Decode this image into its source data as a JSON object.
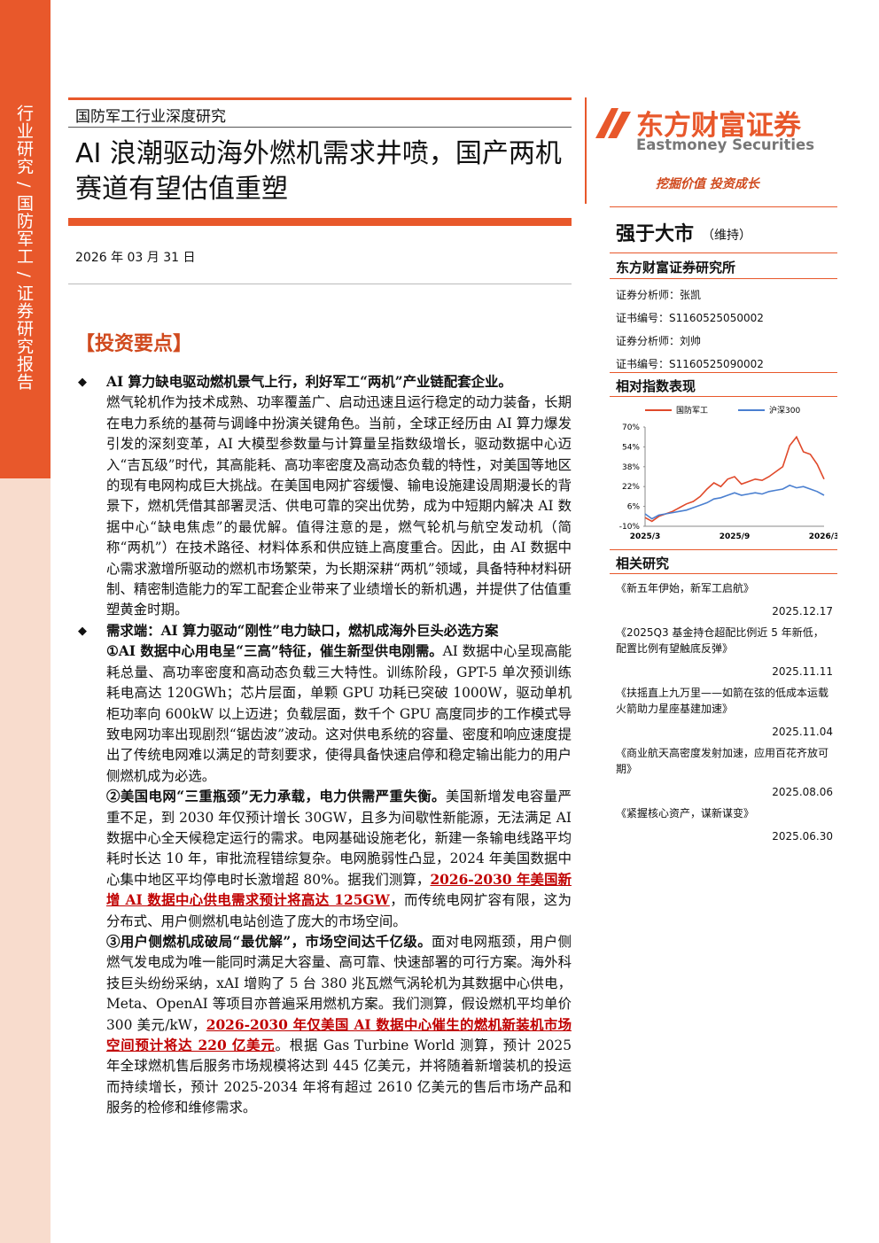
{
  "sidebar": "行业研究 / 国防军工 / 证券研究报告",
  "header": {
    "category": "国防军工行业深度研究",
    "title": "AI 浪潮驱动海外燃机需求井喷，国产两机赛道有望估值重塑",
    "date": "2026 年 03 月 31 日"
  },
  "section_title": "【投资要点】",
  "bullets": [
    {
      "heading": "AI 算力缺电驱动燃机景气上行，利好军工“两机”产业链配套企业。",
      "paragraphs": [
        {
          "runs": [
            {
              "text": "燃气轮机作为技术成熟、功率覆盖广、启动迅速且运行稳定的动力装备，长期在电力系统的基荷与调峰中扮演关键角色。当前，全球正经历由 AI 算力爆发引发的深刻变革，AI 大模型参数量与计算量呈指数级增长，驱动数据中心迈入“吉瓦级”时代，其高能耗、高功率密度及高动态负载的特性，对美国等地区的现有电网构成巨大挑战。在美国电网扩容缓慢、输电设施建设周期漫长的背景下，燃机凭借其部署灵活、供电可靠的突出优势，成为中短期内解决 AI 数据中心“缺电焦虑”的最优解。值得注意的是，燃气轮机与航空发动机（简称“两机”）在技术路径、材料体系和供应链上高度重合。因此，由 AI 数据中心需求激增所驱动的燃机市场繁荣，为长期深耕“两机”领域，具备特种材料研制、精密制造能力的军工配套企业带来了业绩增长的新机遇，并提供了估值重塑黄金时期。",
              "style": "normal"
            }
          ]
        }
      ]
    },
    {
      "heading": "需求端：AI 算力驱动“刚性”电力缺口，燃机成海外巨头必选方案",
      "paragraphs": [
        {
          "runs": [
            {
              "text": "①AI 数据中心用电呈“三高”特征，催生新型供电刚需。",
              "style": "bold"
            },
            {
              "text": "AI 数据中心呈现高能耗总量、高功率密度和高动态负载三大特性。训练阶段，GPT-5 单次预训练耗电高达 120GWh；芯片层面，单颗 GPU 功耗已突破 1000W，驱动单机柜功率向 600kW 以上迈进；负载层面，数千个 GPU 高度同步的工作模式导致电网功率出现剧烈“锯齿波”波动。这对供电系统的容量、密度和响应速度提出了传统电网难以满足的苛刻要求，使得具备快速启停和稳定输出能力的用户侧燃机成为必选。",
              "style": "normal"
            }
          ]
        },
        {
          "runs": [
            {
              "text": "②美国电网“三重瓶颈”无力承载，电力供需严重失衡。",
              "style": "bold"
            },
            {
              "text": "美国新增发电容量严重不足，到 2030 年仅预计增长 30GW，且多为间歇性新能源，无法满足 AI 数据中心全天候稳定运行的需求。电网基础设施老化，新建一条输电线路平均耗时长达 10 年，审批流程错综复杂。电网脆弱性凸显，2024 年美国数据中心集中地区平均停电时长激增超 80%。据我们测算，",
              "style": "normal"
            },
            {
              "text": "2026-2030 年美国新增 AI 数据中心供电需求预计将高达 125GW",
              "style": "red"
            },
            {
              "text": "，而传统电网扩容有限，这为分布式、用户侧燃机电站创造了庞大的市场空间。",
              "style": "normal"
            }
          ]
        },
        {
          "runs": [
            {
              "text": "③用户侧燃机成破局“最优解”，市场空间达千亿级。",
              "style": "bold"
            },
            {
              "text": "面对电网瓶颈，用户侧燃气发电成为唯一能同时满足大容量、高可靠、快速部署的可行方案。海外科技巨头纷纷采纳，xAI 增购了 5 台 380 兆瓦燃气涡轮机为其数据中心供电，Meta、OpenAI 等项目亦普遍采用燃机方案。我们测算，假设燃机平均单价 300 美元/kW，",
              "style": "normal"
            },
            {
              "text": "2026-2030 年仅美国 AI 数据中心催生的燃机新装机市场空间预计将达 220 亿美元",
              "style": "red"
            },
            {
              "text": "。根据 Gas Turbine World 测算，预计 2025 年全球燃机售后服务市场规模将达到 445 亿美元，并将随着新增装机的投运而持续增长，预计 2025-2034 年将有超过 2610 亿美元的售后市场产品和服务的检修和维修需求。",
              "style": "normal"
            }
          ]
        }
      ]
    }
  ],
  "side": {
    "logo": "东方财富证券",
    "logo_en": "Eastmoney Securities",
    "slogan": "挖掘价值 投资成长",
    "rating": "强于大市",
    "rating_note": "（维持）",
    "institute": "东方财富证券研究所",
    "analysts": [
      "证券分析师：张凯",
      "证书编号：S1160525050002",
      "证券分析师：刘帅",
      "证书编号：S1160525090002"
    ],
    "chart_heading": "相对指数表现",
    "research_heading": "相关研究",
    "research": [
      {
        "title": "《新五年伊始，新军工启航》",
        "date": "2025.12.17"
      },
      {
        "title": "《2025Q3 基金持仓超配比例近 5 年新低，配置比例有望触底反弹》",
        "date": "2025.11.11"
      },
      {
        "title": "《扶摇直上九万里——如箭在弦的低成本运载火箭助力星座基建加速》",
        "date": "2025.11.04"
      },
      {
        "title": "《商业航天高密度发射加速，应用百花齐放可期》",
        "date": "2025.08.06"
      },
      {
        "title": "《紧握核心资产，谋新谋变》",
        "date": "2025.06.30"
      }
    ]
  },
  "chart_data": {
    "type": "line",
    "categories": [
      "2025/3",
      null,
      null,
      null,
      null,
      null,
      null,
      null,
      null,
      null,
      null,
      null,
      null,
      "2025/9",
      null,
      null,
      null,
      null,
      null,
      null,
      null,
      null,
      null,
      null,
      null,
      null,
      "2026/3"
    ],
    "series": [
      {
        "name": "国防军工",
        "color": "#e0492a",
        "values": [
          -3,
          -6,
          -2,
          0,
          2,
          5,
          8,
          10,
          14,
          20,
          25,
          22,
          28,
          30,
          24,
          26,
          28,
          27,
          30,
          34,
          38,
          55,
          62,
          50,
          48,
          40,
          28
        ]
      },
      {
        "name": "沪深300",
        "color": "#4a7fd0",
        "values": [
          0,
          -4,
          -1,
          0,
          1,
          2,
          3,
          5,
          7,
          9,
          12,
          13,
          15,
          17,
          15,
          16,
          17,
          16,
          18,
          19,
          20,
          23,
          21,
          22,
          20,
          18,
          15
        ]
      }
    ],
    "ylim": [
      -10,
      70
    ],
    "yticks": [
      {
        "value": 70,
        "label": "70%"
      },
      {
        "value": 54,
        "label": "54%"
      },
      {
        "value": 38,
        "label": "38%"
      },
      {
        "value": 22,
        "label": "22%"
      },
      {
        "value": 6,
        "label": "6%"
      },
      {
        "value": -10,
        "label": "-10%"
      }
    ]
  }
}
